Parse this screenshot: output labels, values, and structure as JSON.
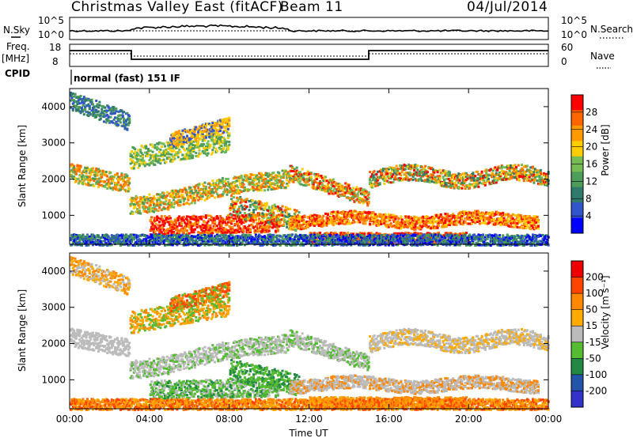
{
  "header": {
    "station": "Christmas Valley East (fitACF)",
    "beam": "Beam 11",
    "date": "04/Jul/2014"
  },
  "top_panels": {
    "nsky_label": "N.Sky",
    "nsearch_label": "N.Search",
    "freq_label": "Freq.",
    "freq_unit": "[MHz]",
    "nave_label": "Nave",
    "cpid_label": "CPID",
    "cpid_value": "normal (fast) 151 IF",
    "noise_ticks": [
      "10^5",
      "10^0"
    ],
    "freq_ticks": [
      "18",
      "8"
    ],
    "nave_ticks": [
      "60",
      "0"
    ]
  },
  "colors": {
    "power_scale": [
      "#0000ff",
      "#3355cc",
      "#2f7a6a",
      "#4d9c5a",
      "#77bb55",
      "#ffcc00",
      "#ff9900",
      "#ff6600",
      "#ff0000"
    ],
    "velocity_scale": [
      "#3333cc",
      "#2255aa",
      "#228844",
      "#55bb33",
      "#bbbbbb",
      "#ffaa00",
      "#ff8800",
      "#ff4400",
      "#ee0000"
    ]
  },
  "chart_data": [
    {
      "type": "heatmap",
      "title": "",
      "xlabel": "",
      "ylabel": "Slant Range [km]",
      "ylim": [
        200,
        4500
      ],
      "x_ticks": [
        "00:00",
        "04:00",
        "08:00",
        "12:00",
        "16:00",
        "20:00",
        "00:00"
      ],
      "y_ticks": [
        "1000",
        "2000",
        "3000",
        "4000"
      ],
      "colorbar_label": "Power [dB]",
      "colorbar_ticks": [
        "28",
        "24",
        "20",
        "16",
        "12",
        "8",
        "4"
      ]
    },
    {
      "type": "heatmap",
      "title": "",
      "xlabel": "Time UT",
      "ylabel": "Slant Range [km]",
      "ylim": [
        200,
        4500
      ],
      "x_ticks": [
        "00:00",
        "04:00",
        "08:00",
        "12:00",
        "16:00",
        "20:00",
        "00:00"
      ],
      "y_ticks": [
        "1000",
        "2000",
        "3000",
        "4000"
      ],
      "colorbar_label": "Velocity [m s⁻¹]",
      "colorbar_ticks": [
        "200",
        "100",
        "50",
        "15",
        "-15",
        "-50",
        "-100",
        "-200"
      ]
    }
  ]
}
